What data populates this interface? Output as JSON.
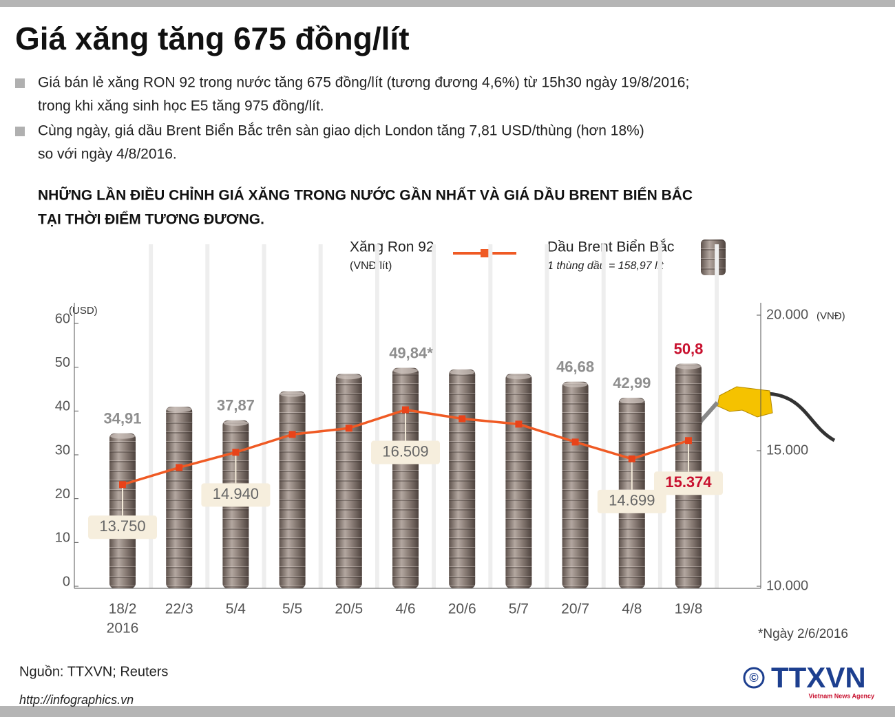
{
  "chart_data": {
    "type": "bar_line",
    "title": "Giá xăng tăng 675 đồng/lít",
    "bullets": [
      "Giá bán lẻ xăng RON 92 trong nước tăng 675 đồng/lít (tương đương 4,6%) từ 15h30 ngày 19/8/2016;",
      "trong khi xăng sinh học E5 tăng 975 đồng/lít.",
      "Cùng ngày, giá dầu Brent Biển Bắc trên sàn giao dịch London tăng 7,81 USD/thùng (hơn 18%)",
      "so với ngày 4/8/2016."
    ],
    "subtitle": [
      "NHỮNG LẦN ĐIỀU CHỈNH GIÁ XĂNG TRONG NƯỚC GẦN NHẤT VÀ GIÁ DẦU BRENT BIỂN BẮC",
      "TẠI THỜI ĐIỂM TƯƠNG ĐƯƠNG."
    ],
    "categories": [
      "18/2",
      "22/3",
      "5/4",
      "5/5",
      "20/5",
      "4/6",
      "20/6",
      "5/7",
      "20/7",
      "4/8",
      "19/8"
    ],
    "year_label": "2016",
    "series": [
      {
        "name": "Dầu Brent Biển Bắc",
        "note": "1 thùng dầu = 158,97 lít",
        "color": "#8a7d76",
        "values": [
          34.91,
          41,
          37.87,
          44.5,
          48.5,
          49.84,
          49.5,
          48.5,
          46.68,
          42.99,
          50.8
        ],
        "value_labels": [
          "34,91",
          null,
          "37,87",
          null,
          null,
          "49,84*",
          null,
          null,
          "46,68",
          "42,99",
          "50,8"
        ]
      },
      {
        "name": "Xăng Ron 92",
        "note": "(VNĐ/lít)",
        "color": "#ef5a24",
        "axis": "y2",
        "values": [
          13750,
          14380,
          14940,
          15600,
          15830,
          16509,
          16180,
          15980,
          15320,
          14699,
          15374
        ],
        "value_labels": [
          "13.750",
          null,
          "14.940",
          null,
          null,
          "16.509",
          null,
          null,
          null,
          "14.699",
          "15.374"
        ]
      }
    ],
    "ylabel": "(USD)",
    "y2label": "(VNĐ)",
    "ylim": [
      0,
      60
    ],
    "yticks": [
      0,
      10,
      20,
      30,
      40,
      50,
      60
    ],
    "y2lim": [
      10000,
      20000
    ],
    "y2ticks": [
      {
        "value": 10000,
        "label": "10.000"
      },
      {
        "value": 15000,
        "label": "15.000"
      },
      {
        "value": 20000,
        "label": "20.000"
      }
    ],
    "highlight_color": "#c8102e",
    "footnote": "*Ngày 2/6/2016",
    "source": "Nguồn: TTXVN; Reuters",
    "url": "http://infographics.vn",
    "logo": "TTXVN",
    "logo_sub": "Vietnam News Agency",
    "copyright": "©"
  }
}
